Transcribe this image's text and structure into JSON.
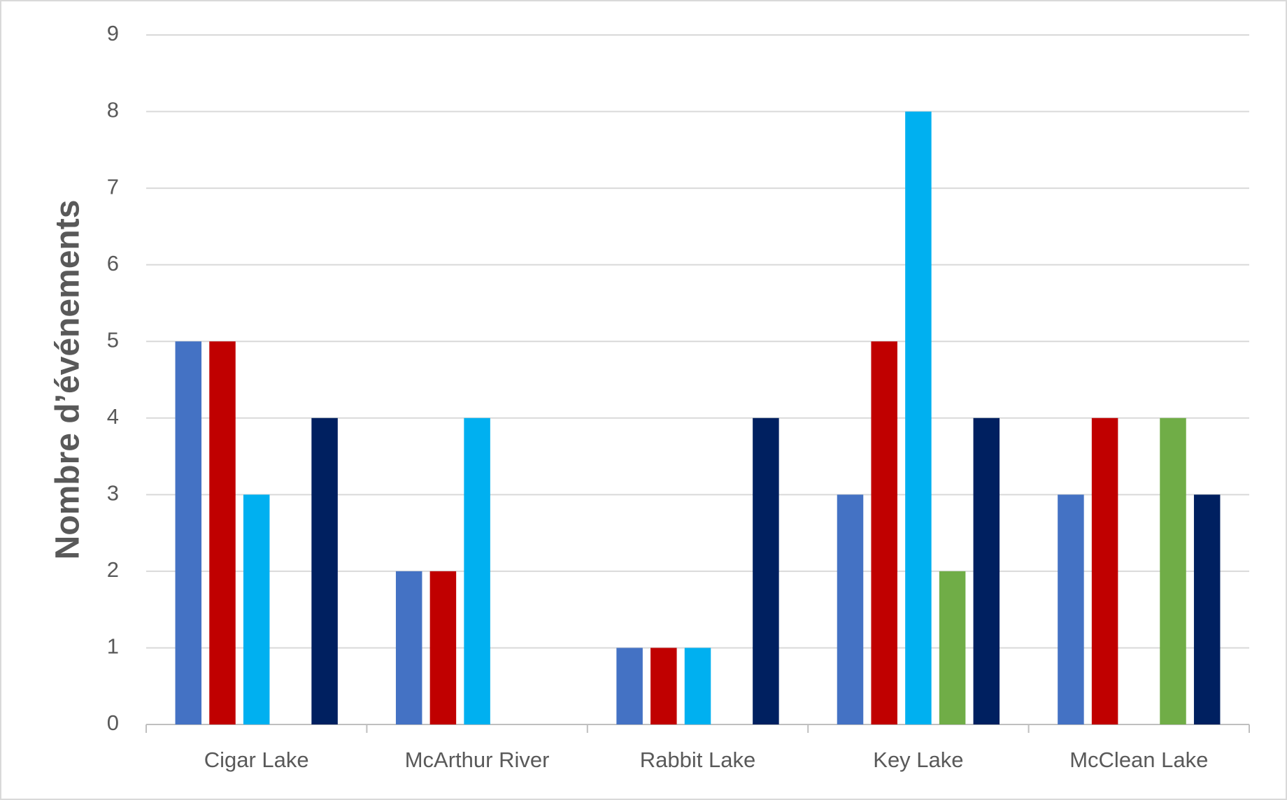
{
  "chart_data": {
    "type": "bar",
    "y_label": "Nombre d’événements",
    "categories": [
      "Cigar Lake",
      "McArthur River",
      "Rabbit Lake",
      "Key Lake",
      "McClean Lake"
    ],
    "series": [
      {
        "color": "#4472c4",
        "values": [
          5,
          2,
          1,
          3,
          3
        ]
      },
      {
        "color": "#c00000",
        "values": [
          5,
          2,
          1,
          5,
          4
        ]
      },
      {
        "color": "#00b0f0",
        "values": [
          3,
          4,
          1,
          8,
          0
        ]
      },
      {
        "color": "#70ad47",
        "values": [
          0,
          0,
          0,
          2,
          4
        ]
      },
      {
        "color": "#002060",
        "values": [
          4,
          0,
          4,
          4,
          3
        ]
      }
    ],
    "ylim": [
      0,
      9
    ],
    "yticks": [
      0,
      1,
      2,
      3,
      4,
      5,
      6,
      7,
      8,
      9
    ],
    "grid": true
  }
}
